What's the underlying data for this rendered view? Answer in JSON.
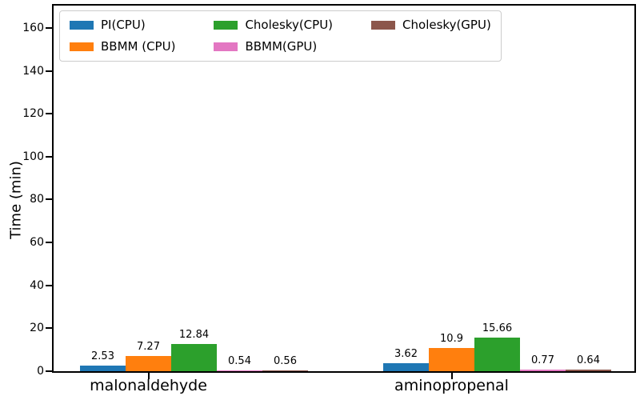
{
  "chart_data": {
    "type": "bar",
    "title": "",
    "xlabel": "",
    "ylabel": "Time (min)",
    "categories": [
      "malonaldehyde",
      "aminopropenal"
    ],
    "series": [
      {
        "name": "PI(CPU)",
        "color": "#1f77b4",
        "values": [
          2.53,
          3.62
        ]
      },
      {
        "name": "BBMM (CPU)",
        "color": "#ff7f0e",
        "values": [
          7.27,
          10.9
        ]
      },
      {
        "name": "Cholesky(CPU)",
        "color": "#2ca02c",
        "values": [
          12.84,
          15.66
        ]
      },
      {
        "name": "BBMM(GPU)",
        "color": "#e377c2",
        "values": [
          0.54,
          0.77
        ]
      },
      {
        "name": "Cholesky(GPU)",
        "color": "#8c564b",
        "values": [
          0.56,
          0.64
        ]
      }
    ],
    "yticks": [
      0,
      20,
      40,
      60,
      80,
      100,
      120,
      140,
      160
    ],
    "ylim": [
      0,
      170.4
    ],
    "bar_value_labels": true,
    "grid": false,
    "legend": {
      "position": "upper left",
      "ncol": 3,
      "fill_order": "column-major"
    },
    "axis_color": "#000000",
    "text_color": "#000000",
    "background_color": "#ffffff"
  }
}
